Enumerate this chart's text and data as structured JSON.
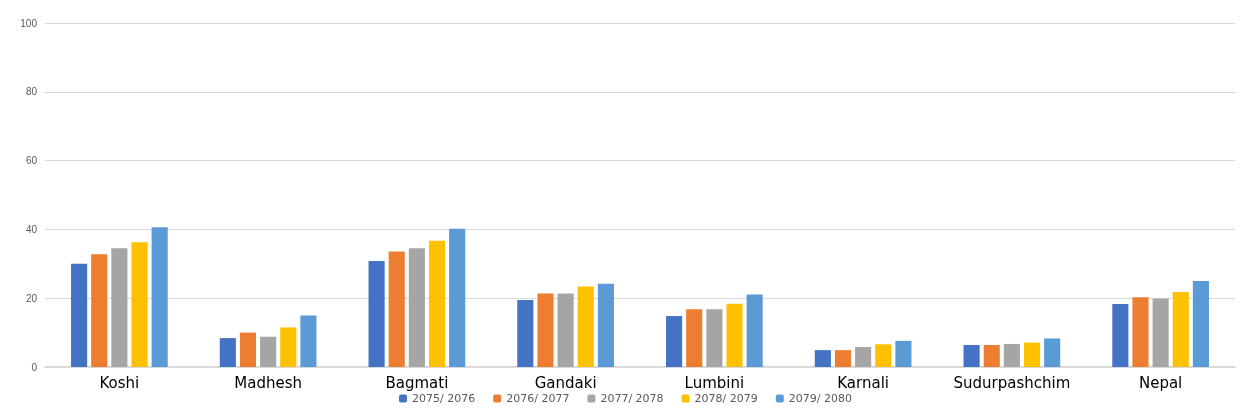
{
  "chart_data": {
    "type": "bar",
    "categories": [
      "Koshi",
      "Madhesh",
      "Bagmati",
      "Gandaki",
      "Lumbini",
      "Karnali",
      "Sudurpashchim",
      "Nepal"
    ],
    "series": [
      {
        "name": "2075/ 2076",
        "color": "#4472c4",
        "values": [
          30,
          8.4,
          30.8,
          19.5,
          14.8,
          4.9,
          6.4,
          18.3
        ]
      },
      {
        "name": "2076/ 2077",
        "color": "#ed7d31",
        "values": [
          32.8,
          10,
          33.6,
          21.4,
          16.8,
          4.9,
          6.4,
          20.3
        ]
      },
      {
        "name": "2077/ 2078",
        "color": "#a5a5a5",
        "values": [
          34.5,
          8.8,
          34.5,
          21.4,
          16.8,
          5.8,
          6.7,
          19.9
        ]
      },
      {
        "name": "2078/ 2079",
        "color": "#ffc000",
        "values": [
          36.3,
          11.5,
          36.7,
          23.4,
          18.4,
          6.6,
          7.1,
          21.8
        ]
      },
      {
        "name": "2079/ 2080",
        "color": "#5b9bd5",
        "values": [
          40.6,
          15,
          40.2,
          24.2,
          21.1,
          7.6,
          8.3,
          25
        ]
      }
    ],
    "ylim": [
      0,
      100
    ],
    "yticks": [
      0,
      20,
      40,
      60,
      80,
      100
    ],
    "grid": "y",
    "legend": "bottom"
  }
}
